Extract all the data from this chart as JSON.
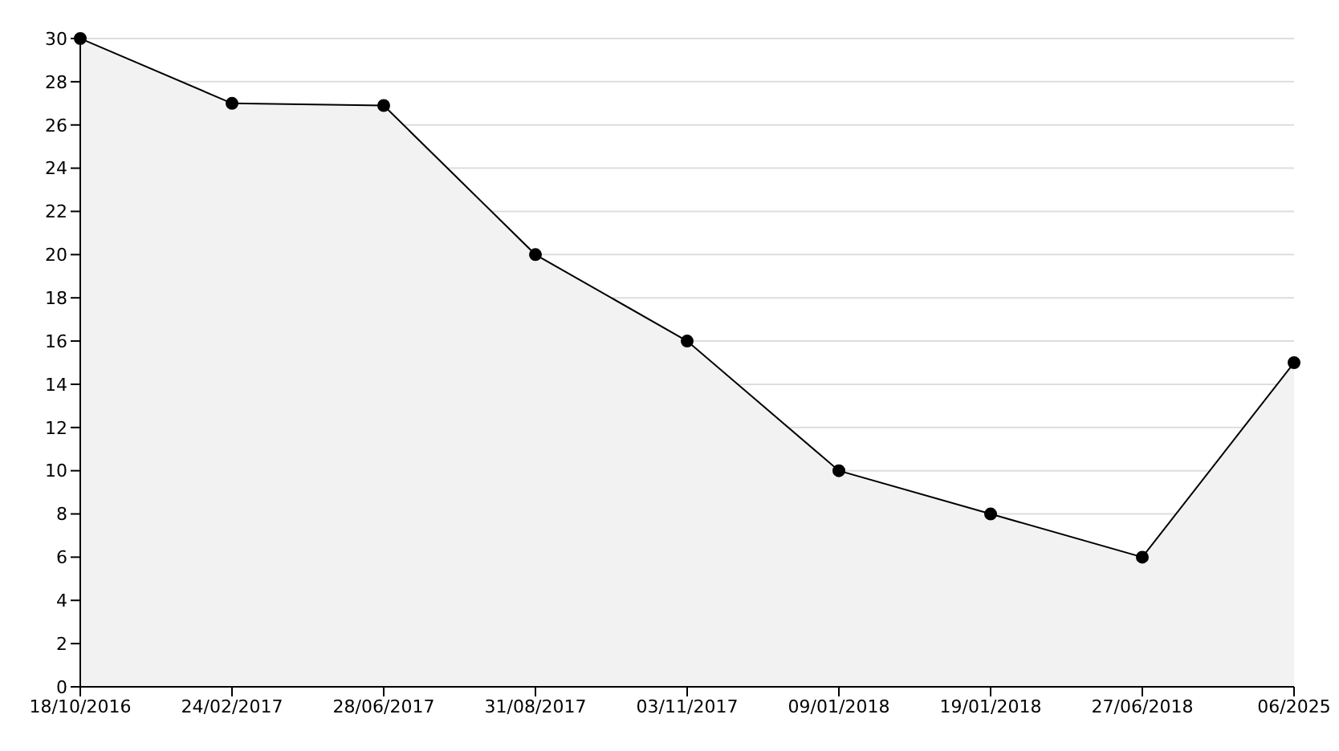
{
  "chart_data": {
    "type": "area",
    "categories": [
      "18/10/2016",
      "24/02/2017",
      "28/06/2017",
      "31/08/2017",
      "03/11/2017",
      "09/01/2018",
      "19/01/2018",
      "27/06/2018",
      "06/2025"
    ],
    "values": [
      30,
      27,
      26.9,
      20,
      16,
      10,
      8,
      6,
      15
    ],
    "color": "#000000",
    "ylim": [
      0,
      30
    ],
    "yticks": [
      0,
      2,
      4,
      6,
      8,
      10,
      12,
      14,
      16,
      18,
      20,
      22,
      24,
      26,
      28,
      30
    ],
    "grid": "y",
    "marker": "circle",
    "line_style": "solid"
  }
}
